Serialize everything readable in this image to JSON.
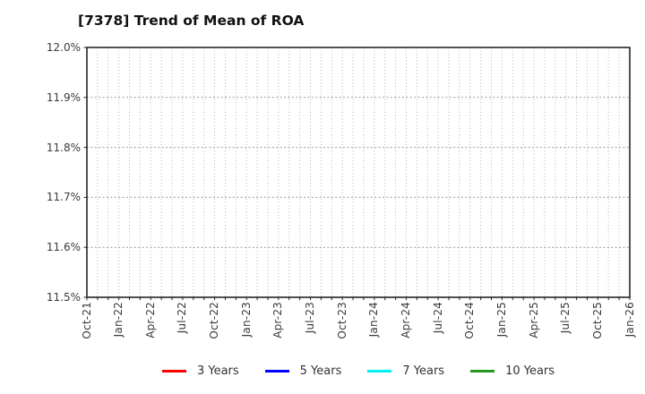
{
  "chart_data": {
    "type": "line",
    "title": "[7378]  Trend of Mean of ROA",
    "xlabel": "",
    "ylabel": "",
    "x_tick_labels": [
      "Oct-21",
      "Jan-22",
      "Apr-22",
      "Jul-22",
      "Oct-22",
      "Jan-23",
      "Apr-23",
      "Jul-23",
      "Oct-23",
      "Jan-24",
      "Apr-24",
      "Jul-24",
      "Oct-24",
      "Jan-25",
      "Apr-25",
      "Jul-25",
      "Oct-25",
      "Jan-26"
    ],
    "x_months_total": 51,
    "x_label_every_months": 3,
    "x_grid_every_months": 1,
    "y_tick_labels": [
      "11.5%",
      "11.6%",
      "11.7%",
      "11.8%",
      "11.9%",
      "12.0%"
    ],
    "ylim": [
      11.5,
      12.0
    ],
    "y_tick_step": 0.1,
    "grid": "dotted, monthly vertical and per-0.1% horizontal",
    "legend_position": "bottom-center",
    "series": [
      {
        "name": "3 Years",
        "color": "#ff0000",
        "values": []
      },
      {
        "name": "5 Years",
        "color": "#0000ff",
        "values": []
      },
      {
        "name": "7 Years",
        "color": "#00eeee",
        "values": []
      },
      {
        "name": "10 Years",
        "color": "#229922",
        "values": []
      }
    ]
  },
  "colors": {
    "background": "#ffffff",
    "plot_border": "#262626",
    "grid_vertical": "#b5b5b5",
    "grid_horizontal": "#9a9a9a",
    "tick_color": "#262626",
    "tick_label": "#3a3a3a",
    "title": "#111111"
  }
}
